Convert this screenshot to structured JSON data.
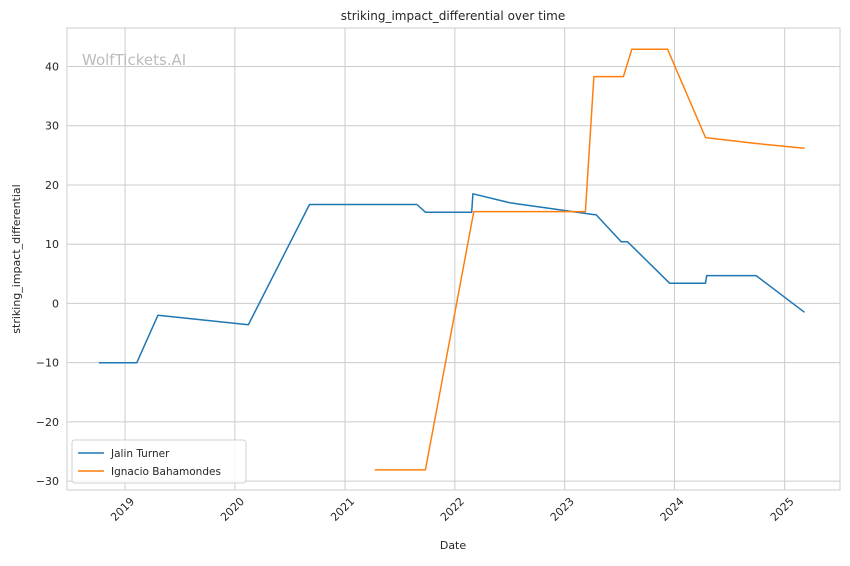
{
  "chart_data": {
    "type": "line",
    "title": "striking_impact_differential over time",
    "xlabel": "Date",
    "ylabel": "striking_impact_differential",
    "watermark": "WolfTickets.AI",
    "xlim": [
      "2018-06-22",
      "2025-07-04"
    ],
    "ylim": [
      -31.5,
      46.5
    ],
    "x_ticks": [
      {
        "date": "2019-01-01",
        "label": "2019"
      },
      {
        "date": "2020-01-01",
        "label": "2020"
      },
      {
        "date": "2021-01-01",
        "label": "2021"
      },
      {
        "date": "2022-01-01",
        "label": "2022"
      },
      {
        "date": "2023-01-01",
        "label": "2023"
      },
      {
        "date": "2024-01-01",
        "label": "2024"
      },
      {
        "date": "2025-01-01",
        "label": "2025"
      }
    ],
    "y_ticks": [
      {
        "value": -30,
        "label": "−30"
      },
      {
        "value": -20,
        "label": "−20"
      },
      {
        "value": -10,
        "label": "−10"
      },
      {
        "value": 0,
        "label": "0"
      },
      {
        "value": 10,
        "label": "10"
      },
      {
        "value": 20,
        "label": "20"
      },
      {
        "value": 30,
        "label": "30"
      },
      {
        "value": 40,
        "label": "40"
      }
    ],
    "grid": true,
    "legend_position": "lower-left",
    "series": [
      {
        "name": "Jalin Turner",
        "color": "#1f77b4",
        "points": [
          {
            "date": "2018-10-06",
            "y": -10.0
          },
          {
            "date": "2019-02-09",
            "y": -10.0
          },
          {
            "date": "2019-04-20",
            "y": -2.0
          },
          {
            "date": "2020-02-15",
            "y": -3.6
          },
          {
            "date": "2020-09-05",
            "y": 16.7
          },
          {
            "date": "2021-08-28",
            "y": 16.7
          },
          {
            "date": "2021-09-25",
            "y": 15.4
          },
          {
            "date": "2022-02-26",
            "y": 15.4
          },
          {
            "date": "2022-03-02",
            "y": 18.5
          },
          {
            "date": "2022-07-02",
            "y": 17.0
          },
          {
            "date": "2023-04-08",
            "y": 15.0
          },
          {
            "date": "2023-04-15",
            "y": 15.0
          },
          {
            "date": "2023-07-08",
            "y": 10.4
          },
          {
            "date": "2023-07-29",
            "y": 10.4
          },
          {
            "date": "2023-12-16",
            "y": 3.4
          },
          {
            "date": "2024-04-13",
            "y": 3.4
          },
          {
            "date": "2024-04-17",
            "y": 4.7
          },
          {
            "date": "2024-09-28",
            "y": 4.7
          },
          {
            "date": "2025-03-08",
            "y": -1.5
          }
        ]
      },
      {
        "name": "Ignacio Bahamondes",
        "color": "#ff7f0e",
        "points": [
          {
            "date": "2021-04-10",
            "y": -28.1
          },
          {
            "date": "2021-09-25",
            "y": -28.1
          },
          {
            "date": "2022-03-05",
            "y": 15.5
          },
          {
            "date": "2023-03-11",
            "y": 15.5
          },
          {
            "date": "2023-04-08",
            "y": 38.3
          },
          {
            "date": "2023-07-15",
            "y": 38.3
          },
          {
            "date": "2023-08-12",
            "y": 42.9
          },
          {
            "date": "2023-12-09",
            "y": 42.9
          },
          {
            "date": "2024-04-13",
            "y": 28.0
          },
          {
            "date": "2024-09-28",
            "y": 27.0
          },
          {
            "date": "2025-03-08",
            "y": 26.2
          }
        ]
      }
    ]
  }
}
